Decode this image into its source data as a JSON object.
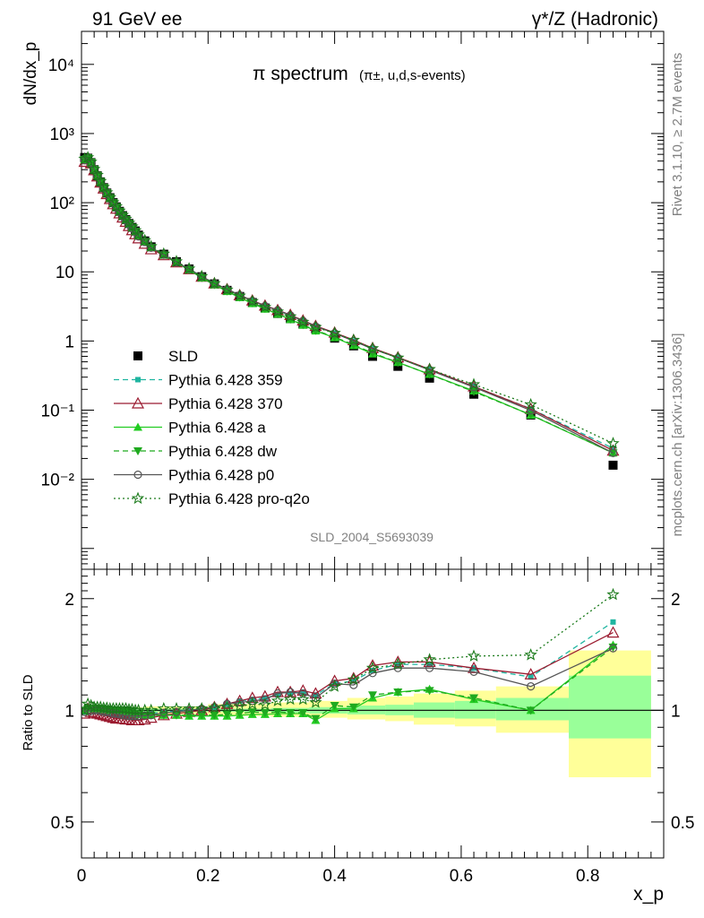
{
  "header": {
    "left_title": "91 GeV ee",
    "right_title": "γ*/Z (Hadronic)"
  },
  "side_labels": {
    "rivet": "Rivet 3.1.10, ≥ 2.7M events",
    "mcplots": "mcplots.cern.ch [arXiv:1306.3436]"
  },
  "watermark": "SLD_2004_S5693039",
  "colors": {
    "ratio_band_outer": "#ffff99",
    "ratio_band_inner": "#99ff99"
  },
  "chart_data": [
    {
      "type": "line",
      "panel": "main",
      "title": "π spectrum",
      "subtitle": "(π±, u,d,s-events)",
      "ylabel": "dN/dx_p",
      "y_scale": "log",
      "ylim": [
        0.0005,
        30000
      ],
      "xlim": [
        0,
        0.92
      ],
      "yticks": [
        {
          "value": 0.01,
          "label": "10⁻²"
        },
        {
          "value": 0.1,
          "label": "10⁻¹"
        },
        {
          "value": 1,
          "label": "1"
        },
        {
          "value": 10,
          "label": "10"
        },
        {
          "value": 100,
          "label": "10²"
        },
        {
          "value": 1000,
          "label": "10³"
        },
        {
          "value": 10000,
          "label": "10⁴"
        }
      ],
      "legend_position": "left-middle",
      "legend": [
        {
          "label": "SLD",
          "marker": "square",
          "color": "#000000",
          "line": "none"
        },
        {
          "label": "Pythia 6.428 359",
          "marker": "small-square",
          "color": "#1fb5a0",
          "line": "dashed"
        },
        {
          "label": "Pythia 6.428 370",
          "marker": "open-triangle",
          "color": "#9b1b30",
          "line": "solid"
        },
        {
          "label": "Pythia 6.428 a",
          "marker": "triangle",
          "color": "#22cc22",
          "line": "solid"
        },
        {
          "label": "Pythia 6.428 dw",
          "marker": "triangle-down",
          "color": "#1faa1f",
          "line": "dashed"
        },
        {
          "label": "Pythia 6.428 p0",
          "marker": "open-circle",
          "color": "#555555",
          "line": "solid"
        },
        {
          "label": "Pythia 6.428 pro-q2o",
          "marker": "open-star",
          "color": "#1a7a1a",
          "line": "dotted"
        }
      ],
      "x": [
        0.005,
        0.01,
        0.015,
        0.02,
        0.025,
        0.03,
        0.035,
        0.04,
        0.045,
        0.05,
        0.055,
        0.06,
        0.065,
        0.07,
        0.075,
        0.08,
        0.085,
        0.09,
        0.1,
        0.11,
        0.13,
        0.15,
        0.17,
        0.19,
        0.21,
        0.23,
        0.25,
        0.27,
        0.29,
        0.31,
        0.33,
        0.35,
        0.37,
        0.4,
        0.43,
        0.46,
        0.5,
        0.55,
        0.62,
        0.71,
        0.84
      ],
      "series": [
        {
          "name": "SLD",
          "values": [
            450,
            440,
            380,
            300,
            245,
            200,
            165,
            138,
            118,
            100,
            87,
            75,
            65,
            57,
            50,
            44,
            39,
            34,
            28,
            23,
            18,
            14,
            11,
            8.5,
            6.7,
            5.4,
            4.4,
            3.6,
            3.0,
            2.5,
            2.1,
            1.75,
            1.5,
            1.1,
            0.85,
            0.6,
            0.43,
            0.29,
            0.17,
            0.085,
            0.016
          ]
        },
        {
          "name": "Pythia 6.428 359",
          "values": [
            400,
            430,
            375,
            298,
            244,
            198,
            163,
            136,
            116,
            98,
            85,
            73,
            63,
            55,
            48,
            42,
            37,
            32,
            26.5,
            22,
            17.8,
            13.9,
            11,
            8.6,
            6.8,
            5.6,
            4.6,
            3.8,
            3.2,
            2.75,
            2.35,
            1.98,
            1.65,
            1.3,
            1.0,
            0.77,
            0.57,
            0.39,
            0.22,
            0.105,
            0.028
          ]
        },
        {
          "name": "Pythia 6.428 370",
          "values": [
            390,
            425,
            370,
            294,
            240,
            195,
            160,
            133,
            113,
            95,
            82,
            70,
            61,
            53,
            46,
            40,
            35,
            30.5,
            25.5,
            21.2,
            17.4,
            13.7,
            10.9,
            8.5,
            6.8,
            5.6,
            4.6,
            3.85,
            3.25,
            2.8,
            2.38,
            1.98,
            1.65,
            1.32,
            1.03,
            0.79,
            0.58,
            0.39,
            0.22,
            0.104,
            0.026
          ]
        },
        {
          "name": "Pythia 6.428 a",
          "values": [
            420,
            445,
            385,
            304,
            248,
            202,
            166,
            139,
            118,
            100,
            87,
            75,
            65,
            57,
            50,
            44,
            38.5,
            33.5,
            27.5,
            22.5,
            17.6,
            13.7,
            10.7,
            8.2,
            6.5,
            5.2,
            4.25,
            3.48,
            2.9,
            2.45,
            2.05,
            1.7,
            1.4,
            1.12,
            0.86,
            0.65,
            0.49,
            0.33,
            0.19,
            0.085,
            0.024
          ]
        },
        {
          "name": "Pythia 6.428 dw",
          "values": [
            420,
            445,
            385,
            304,
            248,
            202,
            166,
            139,
            118,
            100,
            87,
            75,
            65,
            57,
            50,
            44,
            38.5,
            33.5,
            27.5,
            22.5,
            17.6,
            13.7,
            10.7,
            8.2,
            6.5,
            5.25,
            4.3,
            3.55,
            2.95,
            2.47,
            2.06,
            1.72,
            1.42,
            1.14,
            0.88,
            0.67,
            0.49,
            0.33,
            0.185,
            0.086,
            0.024
          ]
        },
        {
          "name": "Pythia 6.428 p0",
          "values": [
            410,
            435,
            378,
            300,
            245,
            199,
            164,
            137,
            116,
            98,
            85,
            73,
            63,
            55,
            48,
            42.5,
            37.5,
            32.5,
            27,
            22.3,
            17.8,
            13.9,
            11,
            8.6,
            6.8,
            5.6,
            4.6,
            3.8,
            3.2,
            2.78,
            2.35,
            1.95,
            1.62,
            1.3,
            1.0,
            0.77,
            0.57,
            0.38,
            0.215,
            0.099,
            0.024
          ]
        },
        {
          "name": "Pythia 6.428 pro-q2o",
          "values": [
            430,
            450,
            388,
            306,
            250,
            204,
            168,
            140,
            119,
            101,
            88,
            76,
            66,
            58,
            51,
            45,
            39.5,
            34.5,
            28.5,
            23.3,
            18.2,
            14.1,
            11.1,
            8.6,
            6.8,
            5.5,
            4.5,
            3.75,
            3.1,
            2.65,
            2.25,
            1.88,
            1.58,
            1.3,
            1.03,
            0.78,
            0.57,
            0.39,
            0.235,
            0.12,
            0.033
          ]
        }
      ]
    },
    {
      "type": "line",
      "panel": "ratio",
      "ylabel": "Ratio to SLD",
      "y_scale": "log",
      "ylim": [
        0.4,
        2.4
      ],
      "xlim": [
        0,
        0.92
      ],
      "xlabel": "x_p",
      "xticks": [
        {
          "value": 0,
          "label": "0"
        },
        {
          "value": 0.2,
          "label": "0.2"
        },
        {
          "value": 0.4,
          "label": "0.4"
        },
        {
          "value": 0.6,
          "label": "0.6"
        },
        {
          "value": 0.8,
          "label": "0.8"
        }
      ],
      "yticks": [
        {
          "value": 0.5,
          "label": "0.5"
        },
        {
          "value": 1,
          "label": "1"
        },
        {
          "value": 2,
          "label": "2"
        }
      ],
      "bands": [
        {
          "x0": 0.0,
          "x1": 0.1,
          "inner": [
            0.985,
            1.015
          ],
          "outer": [
            0.98,
            1.02
          ]
        },
        {
          "x0": 0.1,
          "x1": 0.2,
          "inner": [
            0.99,
            1.01
          ],
          "outer": [
            0.975,
            1.025
          ]
        },
        {
          "x0": 0.2,
          "x1": 0.3,
          "inner": [
            0.99,
            1.01
          ],
          "outer": [
            0.965,
            1.04
          ]
        },
        {
          "x0": 0.3,
          "x1": 0.36,
          "inner": [
            0.985,
            1.015
          ],
          "outer": [
            0.96,
            1.05
          ]
        },
        {
          "x0": 0.36,
          "x1": 0.42,
          "inner": [
            0.98,
            1.02
          ],
          "outer": [
            0.955,
            1.06
          ]
        },
        {
          "x0": 0.42,
          "x1": 0.48,
          "inner": [
            0.975,
            1.03
          ],
          "outer": [
            0.945,
            1.08
          ]
        },
        {
          "x0": 0.48,
          "x1": 0.525,
          "inner": [
            0.97,
            1.035
          ],
          "outer": [
            0.935,
            1.09
          ]
        },
        {
          "x0": 0.525,
          "x1": 0.59,
          "inner": [
            0.955,
            1.05
          ],
          "outer": [
            0.915,
            1.11
          ]
        },
        {
          "x0": 0.59,
          "x1": 0.655,
          "inner": [
            0.95,
            1.06
          ],
          "outer": [
            0.905,
            1.13
          ]
        },
        {
          "x0": 0.655,
          "x1": 0.77,
          "inner": [
            0.94,
            1.08
          ],
          "outer": [
            0.87,
            1.16
          ]
        },
        {
          "x0": 0.77,
          "x1": 0.9,
          "inner": [
            0.84,
            1.24
          ],
          "outer": [
            0.66,
            1.45
          ]
        }
      ],
      "x": [
        0.005,
        0.01,
        0.015,
        0.02,
        0.025,
        0.03,
        0.035,
        0.04,
        0.045,
        0.05,
        0.055,
        0.06,
        0.065,
        0.07,
        0.075,
        0.08,
        0.085,
        0.09,
        0.1,
        0.11,
        0.13,
        0.15,
        0.17,
        0.19,
        0.21,
        0.23,
        0.25,
        0.27,
        0.29,
        0.31,
        0.33,
        0.35,
        0.37,
        0.4,
        0.43,
        0.46,
        0.5,
        0.55,
        0.62,
        0.71,
        0.84
      ],
      "series": [
        {
          "name": "Pythia 6.428 359",
          "values": [
            0.99,
            1.02,
            1.01,
            1.0,
            0.995,
            0.99,
            0.99,
            0.985,
            0.98,
            0.98,
            0.978,
            0.975,
            0.975,
            0.972,
            0.97,
            0.97,
            0.97,
            0.97,
            0.975,
            0.98,
            0.99,
            0.995,
            1.0,
            1.01,
            1.02,
            1.04,
            1.06,
            1.07,
            1.08,
            1.1,
            1.11,
            1.12,
            1.1,
            1.18,
            1.2,
            1.28,
            1.33,
            1.33,
            1.3,
            1.23,
            1.73
          ]
        },
        {
          "name": "Pythia 6.428 370",
          "values": [
            0.98,
            1.01,
            0.99,
            0.985,
            0.98,
            0.975,
            0.97,
            0.965,
            0.96,
            0.955,
            0.95,
            0.95,
            0.948,
            0.945,
            0.945,
            0.94,
            0.94,
            0.94,
            0.945,
            0.955,
            0.97,
            0.98,
            0.99,
            1.0,
            1.02,
            1.04,
            1.06,
            1.08,
            1.09,
            1.12,
            1.12,
            1.13,
            1.11,
            1.2,
            1.22,
            1.32,
            1.35,
            1.35,
            1.3,
            1.25,
            1.62
          ]
        },
        {
          "name": "Pythia 6.428 a",
          "values": [
            1.0,
            1.01,
            1.01,
            1.01,
            1.01,
            1.01,
            1.005,
            1.005,
            1.0,
            1.0,
            1.0,
            0.995,
            0.99,
            0.99,
            0.985,
            0.98,
            0.98,
            0.975,
            0.97,
            0.97,
            0.97,
            0.97,
            0.965,
            0.965,
            0.965,
            0.965,
            0.97,
            0.975,
            0.975,
            0.98,
            0.98,
            0.98,
            0.94,
            1.01,
            1.01,
            1.08,
            1.12,
            1.14,
            1.07,
            1.0,
            1.5
          ]
        },
        {
          "name": "Pythia 6.428 dw",
          "values": [
            1.0,
            1.01,
            1.01,
            1.01,
            1.01,
            1.01,
            1.005,
            1.005,
            1.0,
            1.0,
            1.0,
            0.995,
            0.99,
            0.99,
            0.985,
            0.98,
            0.98,
            0.975,
            0.97,
            0.97,
            0.97,
            0.97,
            0.97,
            0.97,
            0.97,
            0.975,
            0.98,
            0.99,
            0.985,
            0.99,
            0.985,
            0.985,
            0.95,
            1.03,
            1.02,
            1.1,
            1.12,
            1.13,
            1.08,
            1.0,
            1.48
          ]
        },
        {
          "name": "Pythia 6.428 p0",
          "values": [
            0.99,
            1.0,
            0.995,
            1.0,
            1.0,
            0.995,
            0.99,
            0.99,
            0.985,
            0.98,
            0.98,
            0.975,
            0.97,
            0.968,
            0.965,
            0.965,
            0.965,
            0.965,
            0.968,
            0.97,
            0.985,
            0.99,
            1.0,
            1.01,
            1.02,
            1.04,
            1.05,
            1.06,
            1.07,
            1.11,
            1.12,
            1.11,
            1.08,
            1.18,
            1.17,
            1.26,
            1.3,
            1.3,
            1.27,
            1.16,
            1.47
          ]
        },
        {
          "name": "Pythia 6.428 pro-q2o",
          "values": [
            1.0,
            1.04,
            1.03,
            1.02,
            1.02,
            1.02,
            1.015,
            1.015,
            1.01,
            1.01,
            1.01,
            1.01,
            1.01,
            1.01,
            1.005,
            1.005,
            1.0,
            1.0,
            1.0,
            1.0,
            1.01,
            1.01,
            1.01,
            1.01,
            1.015,
            1.02,
            1.025,
            1.04,
            1.035,
            1.06,
            1.07,
            1.07,
            1.05,
            1.16,
            1.21,
            1.3,
            1.33,
            1.37,
            1.4,
            1.41,
            2.05
          ]
        }
      ]
    }
  ]
}
